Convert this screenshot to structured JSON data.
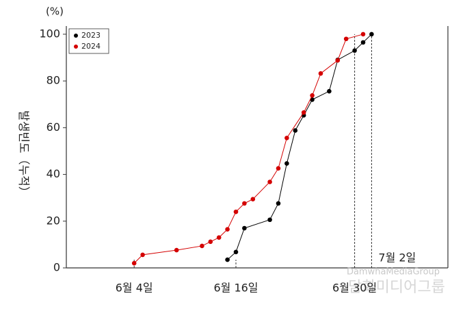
{
  "chart_data": {
    "type": "line",
    "y_unit": "(%)",
    "y_label": "발생빈도（누적）",
    "x": null,
    "series": [
      {
        "name": "2023",
        "color": "#000000",
        "x": [
          "06-15",
          "06-16",
          "06-17",
          "06-20",
          "06-21",
          "06-22",
          "06-23",
          "06-24",
          "06-25",
          "06-27",
          "06-28",
          "06-30",
          "07-01",
          "07-02"
        ],
        "values": [
          3.5,
          6.8,
          17,
          20.6,
          27.6,
          44.7,
          58.8,
          65.3,
          72,
          75.6,
          89,
          93,
          96.5,
          100
        ]
      },
      {
        "name": "2024",
        "color": "#d40000",
        "x": [
          "06-04",
          "06-05",
          "06-09",
          "06-12",
          "06-13",
          "06-14",
          "06-15",
          "06-16",
          "06-17",
          "06-18",
          "06-20",
          "06-21",
          "06-22",
          "06-24",
          "06-25",
          "06-26",
          "06-28",
          "06-29",
          "07-01"
        ],
        "values": [
          2,
          5.6,
          7.6,
          9.4,
          11.2,
          13,
          16.5,
          24,
          27.6,
          29.4,
          36.8,
          42.6,
          55.6,
          66.5,
          73.8,
          83.2,
          88.8,
          98,
          100
        ]
      }
    ],
    "xlim": [
      "05-27",
      "07-11"
    ],
    "xticks": [
      {
        "value": "06-04",
        "label": "6월 4일"
      },
      {
        "value": "06-16",
        "label": "6월 16일"
      },
      {
        "value": "06-30",
        "label": "6월 30일"
      },
      {
        "value": "07-02",
        "label": "7월 2일"
      }
    ],
    "ylim": [
      0,
      103.5
    ],
    "yticks": [
      0,
      20,
      40,
      60,
      80,
      100
    ],
    "legend": "top-left",
    "watermark": [
      "DamwhaMediaGroup",
      "담화미디어그룹"
    ]
  }
}
